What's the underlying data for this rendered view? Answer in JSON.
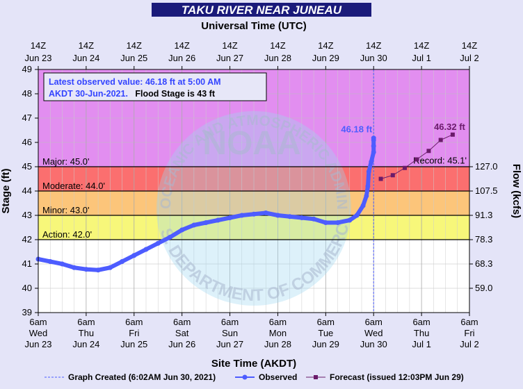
{
  "title": "TAKU RIVER NEAR JUNEAU",
  "chart_data": {
    "type": "line",
    "top_axis_title": "Universal Time (UTC)",
    "xlabel": "Site Time (AKDT)",
    "ylabel": "Stage (ft)",
    "y2label": "Flow (kcfs)",
    "ylim": [
      39,
      49
    ],
    "xlim": [
      0,
      9
    ],
    "x_unit": "days from 6am Wed Jun 23 AKDT",
    "y_ticks": [
      "39",
      "40",
      "41",
      "42",
      "43",
      "44",
      "45",
      "46",
      "47",
      "48",
      "49"
    ],
    "flow_ticks": [
      {
        "stage": 40,
        "label": "59.0"
      },
      {
        "stage": 41,
        "label": "68.3"
      },
      {
        "stage": 42,
        "label": "78.3"
      },
      {
        "stage": 43,
        "label": "91.3"
      },
      {
        "stage": 44,
        "label": "107.5"
      },
      {
        "stage": 45,
        "label": "127.0"
      }
    ],
    "bottom_ticks": [
      {
        "t1": "6am",
        "t2": "Wed",
        "t3": "Jun 23"
      },
      {
        "t1": "6am",
        "t2": "Thu",
        "t3": "Jun 24"
      },
      {
        "t1": "6am",
        "t2": "Fri",
        "t3": "Jun 25"
      },
      {
        "t1": "6am",
        "t2": "Sat",
        "t3": "Jun 26"
      },
      {
        "t1": "6am",
        "t2": "Sun",
        "t3": "Jun 27"
      },
      {
        "t1": "6am",
        "t2": "Mon",
        "t3": "Jun 28"
      },
      {
        "t1": "6am",
        "t2": "Tue",
        "t3": "Jun 29"
      },
      {
        "t1": "6am",
        "t2": "Wed",
        "t3": "Jun 30"
      },
      {
        "t1": "6am",
        "t2": "Thu",
        "t3": "Jul 1"
      },
      {
        "t1": "6am",
        "t2": "Fri",
        "t3": "Jul 2"
      }
    ],
    "top_ticks": [
      {
        "t1": "14Z",
        "t2": "Jun 23"
      },
      {
        "t1": "14Z",
        "t2": "Jun 24"
      },
      {
        "t1": "14Z",
        "t2": "Jun 25"
      },
      {
        "t1": "14Z",
        "t2": "Jun 26"
      },
      {
        "t1": "14Z",
        "t2": "Jun 27"
      },
      {
        "t1": "14Z",
        "t2": "Jun 28"
      },
      {
        "t1": "14Z",
        "t2": "Jun 29"
      },
      {
        "t1": "14Z",
        "t2": "Jun 30"
      },
      {
        "t1": "14Z",
        "t2": "Jul 1"
      },
      {
        "t1": "14Z",
        "t2": "Jul 2"
      }
    ],
    "categories": [
      {
        "name": "Action",
        "label": "Action: 42.0'",
        "from": 42,
        "to": 43,
        "color": "#f7f77a"
      },
      {
        "name": "Minor",
        "label": "Minor: 43.0'",
        "from": 43,
        "to": 44,
        "color": "#fcc57a"
      },
      {
        "name": "Moderate",
        "label": "Moderate: 44.0'",
        "from": 44,
        "to": 45,
        "color": "#fb6f6f"
      },
      {
        "name": "Major",
        "label": "Major: 45.0'",
        "from": 45,
        "to": 49,
        "color": "#e28ef0"
      }
    ],
    "record": {
      "label": "Record: 45.1'",
      "value": 45.1
    },
    "annotation": {
      "line1": "Latest observed value: 46.18 ft at 5:00 AM",
      "line2a": "AKDT 30-Jun-2021.",
      "line2b": "Flood Stage is 43 ft"
    },
    "created_x": 7.0,
    "latest_obs_label": "46.18 ft",
    "latest_fc_label": "46.32 ft",
    "observed": {
      "name": "Observed",
      "color": "#4d5cff",
      "points": [
        [
          0.0,
          41.2
        ],
        [
          0.25,
          41.1
        ],
        [
          0.5,
          41.0
        ],
        [
          0.75,
          40.85
        ],
        [
          1.0,
          40.78
        ],
        [
          1.25,
          40.75
        ],
        [
          1.5,
          40.85
        ],
        [
          1.75,
          41.1
        ],
        [
          2.0,
          41.35
        ],
        [
          2.25,
          41.6
        ],
        [
          2.5,
          41.85
        ],
        [
          2.75,
          42.1
        ],
        [
          3.0,
          42.4
        ],
        [
          3.25,
          42.6
        ],
        [
          3.5,
          42.7
        ],
        [
          3.75,
          42.8
        ],
        [
          4.0,
          42.9
        ],
        [
          4.25,
          43.0
        ],
        [
          4.5,
          43.05
        ],
        [
          4.75,
          43.1
        ],
        [
          5.0,
          43.0
        ],
        [
          5.25,
          42.95
        ],
        [
          5.5,
          42.9
        ],
        [
          5.75,
          42.85
        ],
        [
          6.0,
          42.7
        ],
        [
          6.25,
          42.7
        ],
        [
          6.5,
          42.8
        ],
        [
          6.65,
          43.0
        ],
        [
          6.78,
          43.4
        ],
        [
          6.85,
          43.8
        ],
        [
          6.88,
          44.2
        ],
        [
          6.9,
          44.8
        ],
        [
          6.95,
          45.2
        ],
        [
          7.0,
          45.6
        ],
        [
          7.0,
          45.85
        ],
        [
          7.0,
          46.1
        ],
        [
          7.0,
          46.18
        ]
      ]
    },
    "forecast": {
      "name": "Forecast (issued 12:03PM Jun 29)",
      "color": "#6a1b6a",
      "points": [
        [
          7.15,
          44.5
        ],
        [
          7.4,
          44.65
        ],
        [
          7.65,
          44.95
        ],
        [
          7.9,
          45.3
        ],
        [
          8.15,
          45.65
        ],
        [
          8.4,
          46.1
        ],
        [
          8.65,
          46.32
        ]
      ]
    }
  },
  "legend": {
    "created": "Graph Created (6:02AM Jun 30, 2021)",
    "observed": "Observed",
    "forecast": "Forecast (issued 12:03PM Jun 29)"
  },
  "watermark": {
    "top": "NATIONAL OCEANIC AND ATMOSPHERIC ADMINISTRATION",
    "logo": "NOAA",
    "bottom": "U.S. DEPARTMENT OF COMMERCE"
  },
  "colors": {
    "below_action": "#ffffff",
    "observed": "#4d5cff",
    "forecast": "#6a1b6a",
    "title_bar": "#1a1a7a"
  }
}
